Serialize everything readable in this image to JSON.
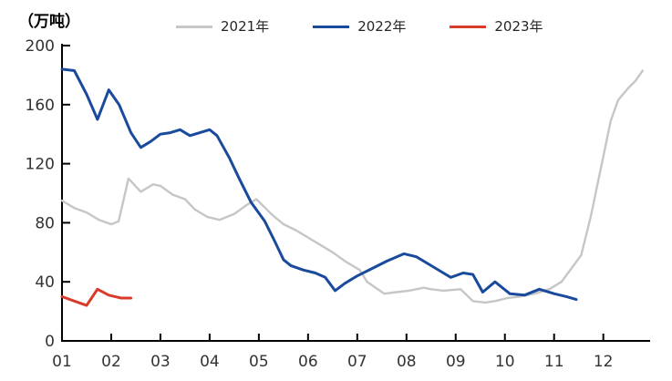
{
  "unit_label": "（万吨）",
  "chart_data": {
    "type": "line",
    "title": "",
    "unit_label": "（万吨）",
    "legend_position": "top-center",
    "grid": false,
    "y_axis": {
      "ticks": [
        0,
        40,
        80,
        120,
        160,
        200
      ],
      "range": [
        0,
        200
      ]
    },
    "x_axis": {
      "tick_labels": [
        "01",
        "02",
        "03",
        "04",
        "05",
        "06",
        "07",
        "08",
        "09",
        "10",
        "11",
        "12"
      ],
      "range_months": [
        1,
        12.95
      ],
      "unit": "month"
    },
    "series": [
      {
        "name": "2021年",
        "color": "#c6c6c6",
        "x": [
          1.0,
          1.25,
          1.5,
          1.75,
          2.0,
          2.15,
          2.35,
          2.6,
          2.85,
          3.0,
          3.25,
          3.5,
          3.7,
          3.95,
          4.2,
          4.5,
          4.75,
          4.95,
          5.25,
          5.5,
          5.75,
          6.0,
          6.3,
          6.5,
          6.75,
          7.05,
          7.2,
          7.55,
          7.8,
          8.05,
          8.35,
          8.5,
          8.75,
          9.1,
          9.35,
          9.6,
          9.8,
          10.05,
          10.3,
          10.6,
          10.9,
          11.15,
          11.35,
          11.55,
          11.75,
          12.0,
          12.15,
          12.3,
          12.5,
          12.65,
          12.8
        ],
        "values": [
          95,
          90,
          87,
          82,
          79,
          81,
          110,
          101,
          106,
          105,
          99,
          96,
          89,
          84,
          82,
          86,
          92,
          96,
          86,
          79,
          75,
          70,
          64,
          60,
          54,
          48,
          40,
          32,
          33,
          34,
          36,
          35,
          34,
          35,
          27,
          26,
          27,
          29,
          30,
          32,
          35,
          40,
          49,
          58,
          85,
          125,
          149,
          163,
          171,
          176,
          183
        ]
      },
      {
        "name": "2022年",
        "color": "#1a4a9c",
        "x": [
          1.0,
          1.25,
          1.5,
          1.72,
          1.95,
          2.16,
          2.4,
          2.6,
          2.8,
          3.0,
          3.2,
          3.4,
          3.6,
          3.8,
          4.0,
          4.15,
          4.4,
          4.6,
          4.84,
          5.12,
          5.33,
          5.5,
          5.65,
          5.9,
          6.15,
          6.35,
          6.55,
          6.75,
          7.0,
          7.3,
          7.6,
          7.95,
          8.2,
          8.5,
          8.75,
          8.9,
          9.15,
          9.35,
          9.55,
          9.8,
          10.1,
          10.4,
          10.7,
          11.0,
          11.25,
          11.45
        ],
        "values": [
          184,
          183,
          167,
          150,
          170,
          160,
          141,
          131,
          135,
          140,
          141,
          143,
          139,
          141,
          143,
          139,
          124,
          110,
          94,
          81,
          67,
          55,
          51,
          48,
          46,
          43,
          34,
          39,
          44,
          49,
          54,
          59,
          57,
          51,
          46,
          43,
          46,
          45,
          33,
          40,
          32,
          31,
          35,
          32,
          30,
          28
        ]
      },
      {
        "name": "2023年",
        "color": "#d93b2b",
        "x": [
          1.0,
          1.25,
          1.5,
          1.72,
          1.95,
          2.2,
          2.4
        ],
        "values": [
          30,
          27,
          24,
          35,
          31,
          29,
          29
        ]
      }
    ]
  }
}
